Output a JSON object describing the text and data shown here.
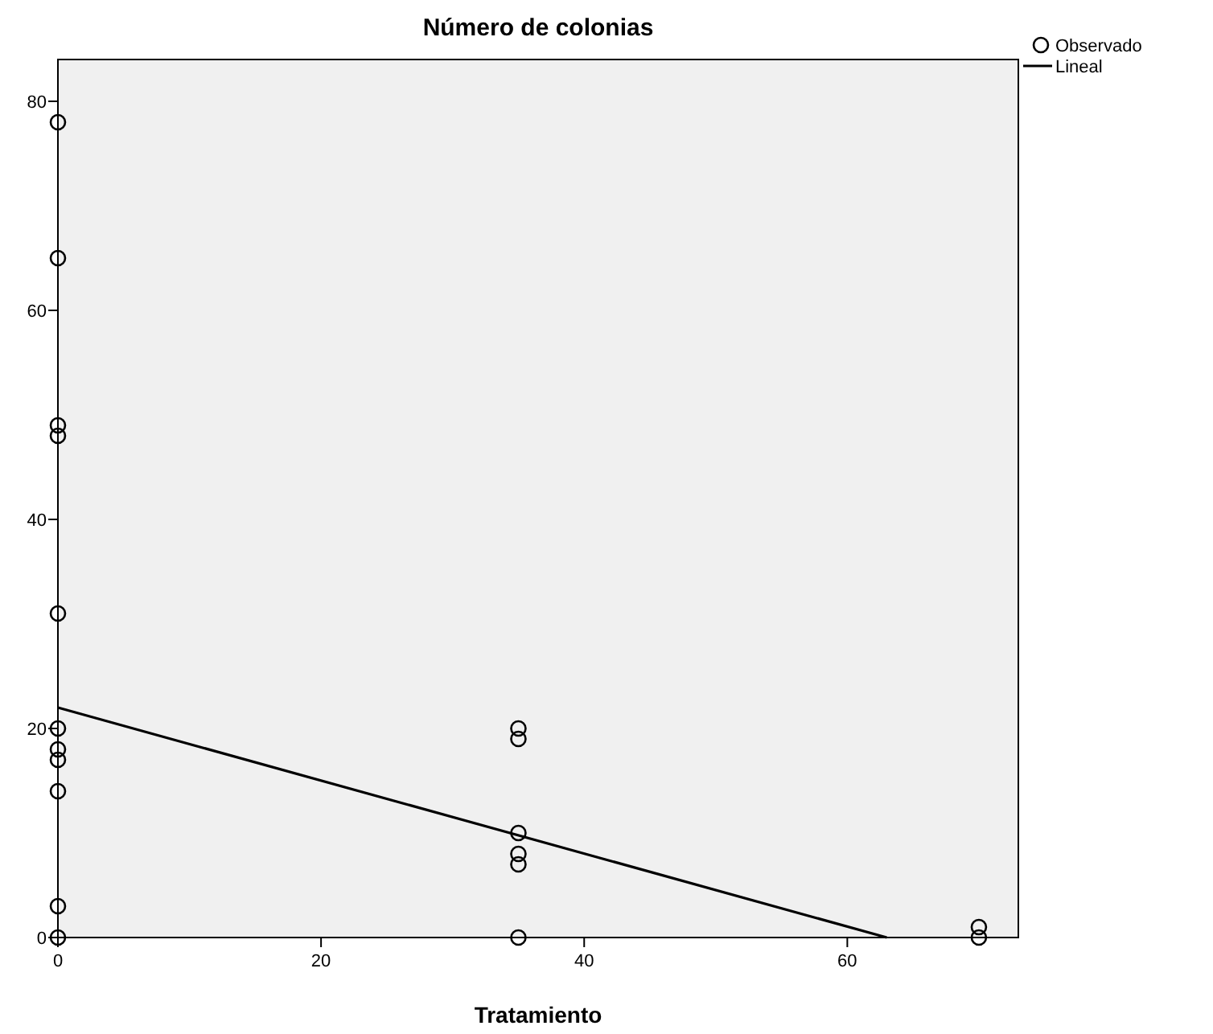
{
  "chart_data": {
    "type": "scatter",
    "title": "Número de colonias",
    "xlabel": "Tratamiento",
    "xlim": [
      0,
      73
    ],
    "xticks": [
      0,
      20,
      40,
      60
    ],
    "ylim": [
      0,
      84
    ],
    "yticks": [
      0,
      20,
      40,
      60,
      80
    ],
    "grid": false,
    "legend": "top right",
    "marker": "circle",
    "series": [
      {
        "name": "Observado",
        "color": "#000000",
        "x": [
          0,
          0,
          0,
          0,
          0,
          0,
          0,
          0,
          0,
          0,
          0,
          35,
          35,
          35,
          35,
          35,
          35,
          70,
          70
        ],
        "values": [
          78,
          65,
          49,
          48,
          31,
          20,
          18,
          17,
          14,
          3,
          0,
          20,
          19,
          10,
          8,
          7,
          0,
          1,
          0
        ]
      },
      {
        "name": "Lineal",
        "type": "line",
        "color": "#000000",
        "marker": "none",
        "x": [
          0,
          63
        ],
        "values": [
          22,
          0
        ]
      }
    ]
  }
}
